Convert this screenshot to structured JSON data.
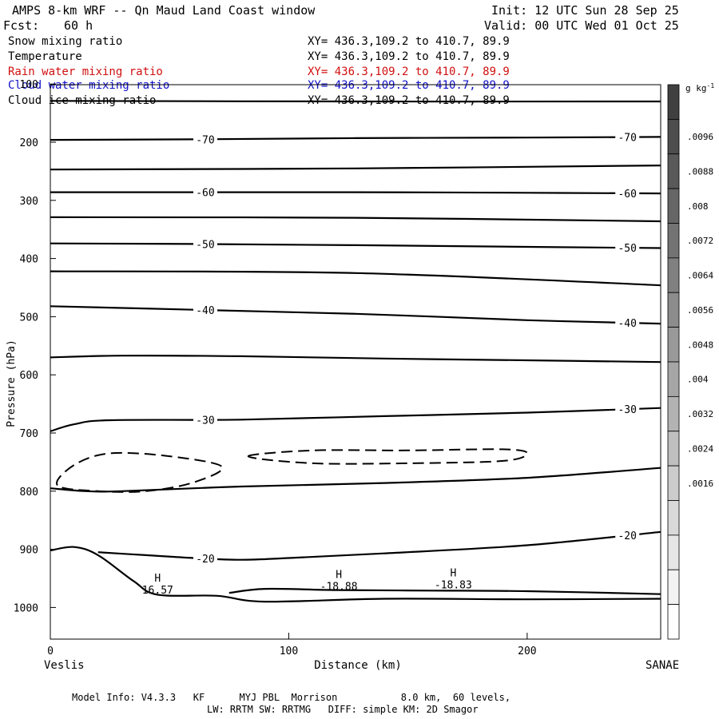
{
  "header": {
    "title": "AMPS 8-km WRF -- Qn Maud Land Coast window",
    "fcst_label": "Fcst:",
    "fcst_value": "60 h",
    "init": "Init: 12 UTC Sun 28 Sep 25",
    "valid": "Valid: 00 UTC Wed 01 Oct 25"
  },
  "field_rows": [
    {
      "name": "Snow mixing ratio",
      "xy": "XY= 436.3,109.2 to 410.7, 89.9",
      "color": "#000000"
    },
    {
      "name": "Temperature",
      "xy": "XY= 436.3,109.2 to 410.7, 89.9",
      "color": "#000000"
    },
    {
      "name": "Rain water mixing ratio",
      "xy": "XY= 436.3,109.2 to 410.7, 89.9",
      "color": "#d01010"
    },
    {
      "name": "Cloud water mixing ratio",
      "xy": "XY= 436.3,109.2 to 410.7, 89.9",
      "color": "#1010c8"
    },
    {
      "name": "Cloud ice mixing ratio",
      "xy": "XY= 436.3,109.2 to 410.7, 89.9",
      "color": "#000000"
    }
  ],
  "footer": {
    "line1": "Model Info: V4.3.3   KF      MYJ PBL  Morrison           8.0 km,  60 levels,",
    "line2": "LW: RRTM SW: RRTMG   DIFF: simple KM: 2D Smagor"
  },
  "chart_data": {
    "type": "line",
    "title": "",
    "xlabel": "Distance (km)",
    "ylabel": "Pressure (hPa)",
    "xlim": [
      0,
      256
    ],
    "ylim": [
      1050,
      100
    ],
    "y_scale": "linear (inverted)",
    "x_ticks": [
      0,
      100,
      200
    ],
    "y_ticks": [
      100,
      200,
      300,
      400,
      500,
      600,
      700,
      800,
      900,
      1000
    ],
    "x_end_labels": {
      "left": "Veslis",
      "right": "SANAE"
    },
    "grid": false,
    "legend": "none",
    "temperature_contours": [
      {
        "label": "",
        "points": [
          [
            0,
            129
          ],
          [
            128,
            130
          ],
          [
            256,
            130
          ]
        ]
      },
      {
        "label": "-70",
        "points": [
          [
            0,
            196
          ],
          [
            60,
            195
          ],
          [
            128,
            193
          ],
          [
            200,
            192
          ],
          [
            256,
            191
          ]
        ]
      },
      {
        "label": "",
        "points": [
          [
            0,
            247
          ],
          [
            128,
            245
          ],
          [
            256,
            240
          ]
        ]
      },
      {
        "label": "-60",
        "points": [
          [
            0,
            286
          ],
          [
            60,
            286
          ],
          [
            128,
            286
          ],
          [
            200,
            287
          ],
          [
            256,
            288
          ]
        ]
      },
      {
        "label": "",
        "points": [
          [
            0,
            329
          ],
          [
            128,
            330
          ],
          [
            256,
            336
          ]
        ]
      },
      {
        "label": "-50",
        "points": [
          [
            0,
            374
          ],
          [
            60,
            375
          ],
          [
            128,
            377
          ],
          [
            200,
            380
          ],
          [
            256,
            382
          ]
        ]
      },
      {
        "label": "",
        "points": [
          [
            0,
            422
          ],
          [
            128,
            425
          ],
          [
            256,
            446
          ]
        ]
      },
      {
        "label": "-40",
        "points": [
          [
            0,
            482
          ],
          [
            60,
            488
          ],
          [
            128,
            495
          ],
          [
            200,
            506
          ],
          [
            256,
            512
          ]
        ]
      },
      {
        "label": "",
        "points": [
          [
            0,
            570
          ],
          [
            30,
            567
          ],
          [
            80,
            568
          ],
          [
            140,
            572
          ],
          [
            200,
            575
          ],
          [
            256,
            578
          ]
        ]
      },
      {
        "label": "-30",
        "points": [
          [
            0,
            697
          ],
          [
            10,
            685
          ],
          [
            25,
            678
          ],
          [
            80,
            677
          ],
          [
            140,
            671
          ],
          [
            200,
            665
          ],
          [
            256,
            657
          ]
        ]
      },
      {
        "label": "",
        "points": [
          [
            0,
            795
          ],
          [
            15,
            800
          ],
          [
            30,
            800
          ],
          [
            80,
            792
          ],
          [
            140,
            786
          ],
          [
            200,
            777
          ],
          [
            256,
            760
          ]
        ]
      },
      {
        "label": "-20",
        "points": [
          [
            20,
            905
          ],
          [
            40,
            910
          ],
          [
            60,
            915
          ],
          [
            80,
            918
          ],
          [
            100,
            915
          ],
          [
            140,
            907
          ],
          [
            200,
            893
          ],
          [
            256,
            870
          ]
        ]
      },
      {
        "label": "",
        "points": [
          [
            0,
            902
          ],
          [
            10,
            896
          ],
          [
            20,
            910
          ],
          [
            35,
            955
          ],
          [
            45,
            978
          ],
          [
            70,
            980
          ],
          [
            90,
            990
          ],
          [
            140,
            985
          ],
          [
            200,
            986
          ],
          [
            256,
            985
          ]
        ]
      },
      {
        "label": "",
        "points": [
          [
            75,
            975
          ],
          [
            90,
            968
          ],
          [
            120,
            970
          ],
          [
            160,
            971
          ],
          [
            200,
            972
          ],
          [
            256,
            977
          ]
        ]
      }
    ],
    "cloud_ice_contours_dashed": [
      {
        "points": [
          [
            3,
            790
          ],
          [
            10,
            755
          ],
          [
            25,
            735
          ],
          [
            50,
            740
          ],
          [
            72,
            758
          ],
          [
            60,
            785
          ],
          [
            40,
            800
          ],
          [
            20,
            800
          ],
          [
            3,
            790
          ]
        ]
      },
      {
        "points": [
          [
            83,
            740
          ],
          [
            110,
            730
          ],
          [
            150,
            730
          ],
          [
            190,
            728
          ],
          [
            200,
            735
          ],
          [
            190,
            748
          ],
          [
            150,
            752
          ],
          [
            110,
            752
          ],
          [
            83,
            740
          ]
        ]
      }
    ],
    "minima": [
      {
        "x": 45,
        "y": 958,
        "label": "H",
        "value": "16.57"
      },
      {
        "x": 121,
        "y": 952,
        "label": "H",
        "value": "-18.88"
      },
      {
        "x": 169,
        "y": 949,
        "label": "H",
        "value": "-18.83"
      }
    ],
    "colorbar": {
      "units": "g kg-1",
      "ticks": [
        ".0096",
        ".0088",
        ".008",
        ".0072",
        ".0064",
        ".0056",
        ".0048",
        ".004",
        ".0032",
        ".0024",
        ".0016"
      ],
      "colors": [
        "#404040",
        "#4d4d4d",
        "#595959",
        "#666666",
        "#737373",
        "#808080",
        "#8c8c8c",
        "#999999",
        "#a6a6a6",
        "#b3b3b3",
        "#bfbfbf",
        "#cccccc",
        "#d9d9d9",
        "#e6e6e6",
        "#f2f2f2",
        "#ffffff"
      ]
    }
  }
}
